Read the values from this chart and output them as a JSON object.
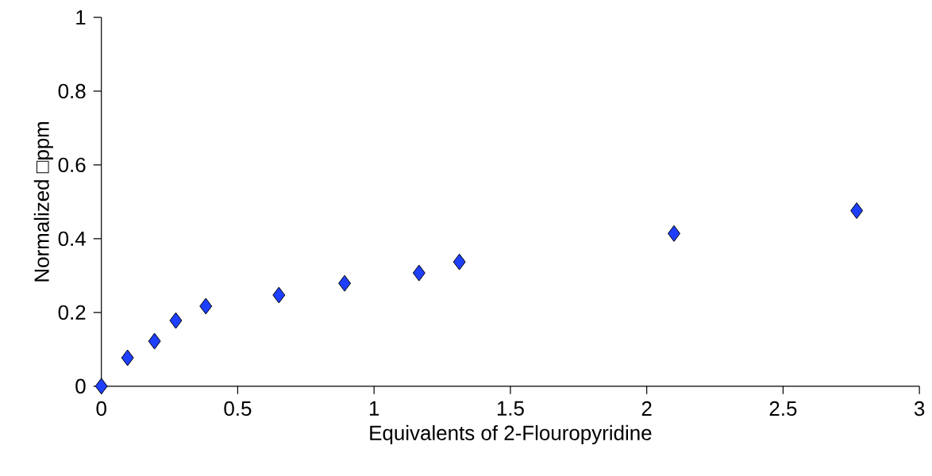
{
  "chart_data": {
    "type": "scatter",
    "xlabel": "Equivalents of 2-Flouropyridine",
    "ylabel": "Normalized □ppm",
    "x": [
      0,
      0.096,
      0.195,
      0.273,
      0.383,
      0.651,
      0.892,
      1.165,
      1.313,
      2.1,
      2.77
    ],
    "values": [
      0,
      0.077,
      0.122,
      0.178,
      0.217,
      0.247,
      0.279,
      0.307,
      0.337,
      0.414,
      0.476
    ],
    "color": "#1f3fff",
    "marker": "diamond",
    "xlim": [
      0,
      3
    ],
    "xticks": [
      0,
      0.5,
      1,
      1.5,
      2,
      2.5,
      3
    ],
    "ylim": [
      0,
      1
    ],
    "yticks": [
      0,
      0.2,
      0.4,
      0.6,
      0.8,
      1
    ]
  }
}
